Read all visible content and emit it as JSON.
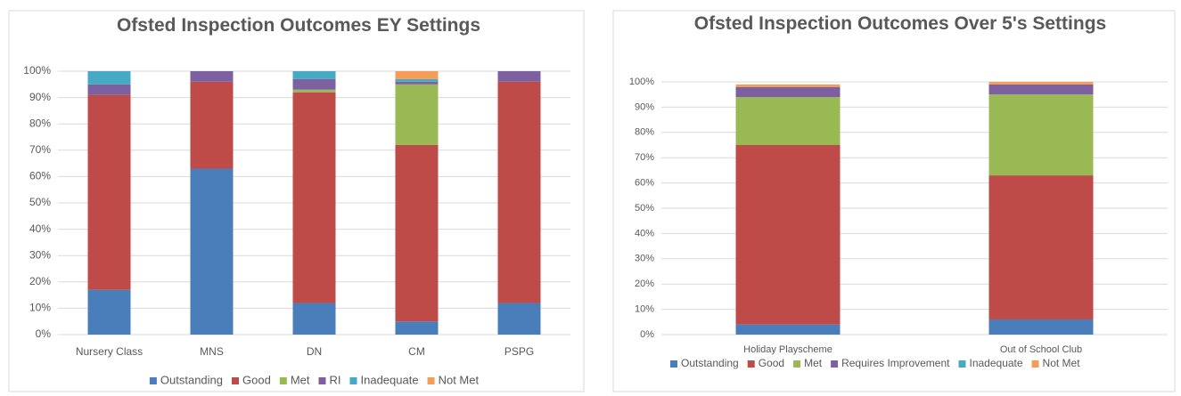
{
  "chart_data": [
    {
      "type": "bar",
      "stacked": true,
      "title": "Ofsted Inspection Outcomes EY Settings",
      "categories": [
        "Nursery Class",
        "MNS",
        "DN",
        "CM",
        "PSPG"
      ],
      "series": [
        {
          "name": "Outstanding",
          "color": "#4a7ebb",
          "values": [
            17,
            63,
            12,
            5,
            12
          ]
        },
        {
          "name": "Good",
          "color": "#be4b48",
          "values": [
            74,
            33,
            80,
            67,
            84
          ]
        },
        {
          "name": "Met",
          "color": "#98b954",
          "values": [
            0,
            0,
            1,
            23,
            0
          ]
        },
        {
          "name": "RI",
          "color": "#7d60a0",
          "values": [
            4,
            4,
            4,
            1,
            4
          ]
        },
        {
          "name": "Inadequate",
          "color": "#46aac5",
          "values": [
            5,
            0,
            3,
            1,
            0
          ]
        },
        {
          "name": "Not Met",
          "color": "#f59d56",
          "values": [
            0,
            0,
            0,
            3,
            0
          ]
        }
      ],
      "ylim": [
        0,
        100
      ],
      "yticks": [
        {
          "value": 0,
          "label": "0%"
        },
        {
          "value": 10,
          "label": "10%"
        },
        {
          "value": 20,
          "label": "20%"
        },
        {
          "value": 30,
          "label": "30%"
        },
        {
          "value": 40,
          "label": "40%"
        },
        {
          "value": 50,
          "label": "50%"
        },
        {
          "value": 60,
          "label": "60%"
        },
        {
          "value": 70,
          "label": "70%"
        },
        {
          "value": 80,
          "label": "80%"
        },
        {
          "value": 90,
          "label": "90%"
        },
        {
          "value": 100,
          "label": "100%"
        }
      ],
      "grid": true,
      "legend": "bottom"
    },
    {
      "type": "bar",
      "stacked": true,
      "title": "Ofsted Inspection Outcomes Over 5's Settings",
      "categories": [
        "Holiday Playscheme",
        "Out of School Club"
      ],
      "series": [
        {
          "name": "Outstanding",
          "color": "#4a7ebb",
          "values": [
            4,
            6
          ]
        },
        {
          "name": "Good",
          "color": "#be4b48",
          "values": [
            71,
            57
          ]
        },
        {
          "name": "Met",
          "color": "#98b954",
          "values": [
            19,
            32
          ]
        },
        {
          "name": "Requires Improvement",
          "color": "#7d60a0",
          "values": [
            4,
            4
          ]
        },
        {
          "name": "Inadequate",
          "color": "#46aac5",
          "values": [
            0,
            0
          ]
        },
        {
          "name": "Not Met",
          "color": "#f59d56",
          "values": [
            1,
            1
          ]
        }
      ],
      "ylim": [
        0,
        100
      ],
      "yticks": [
        {
          "value": 0,
          "label": "0%"
        },
        {
          "value": 10,
          "label": "10%"
        },
        {
          "value": 20,
          "label": "20%"
        },
        {
          "value": 30,
          "label": "30%"
        },
        {
          "value": 40,
          "label": "40%"
        },
        {
          "value": 50,
          "label": "50%"
        },
        {
          "value": 60,
          "label": "60%"
        },
        {
          "value": 70,
          "label": "70%"
        },
        {
          "value": 80,
          "label": "80%"
        },
        {
          "value": 90,
          "label": "90%"
        },
        {
          "value": 100,
          "label": "100%"
        }
      ],
      "grid": true,
      "legend": "bottom"
    }
  ]
}
